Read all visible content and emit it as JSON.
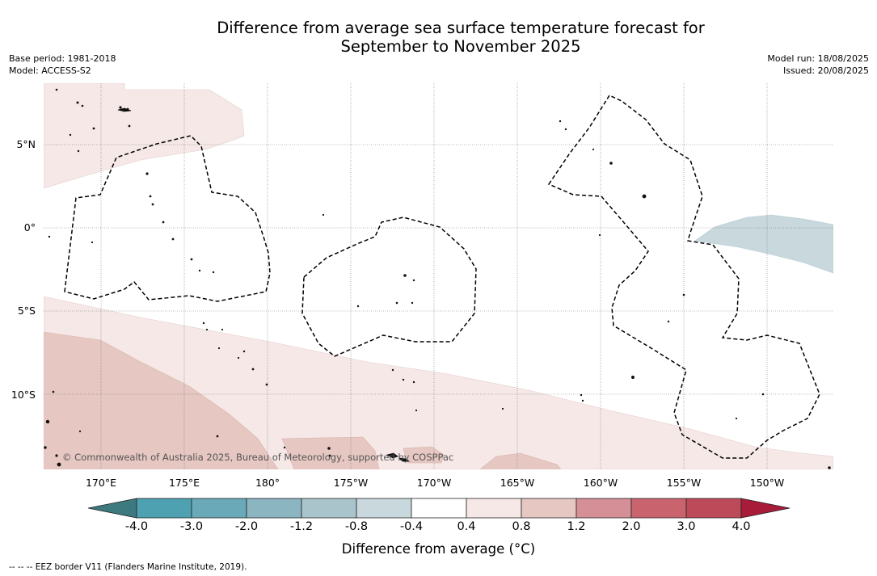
{
  "title": {
    "line1": "Difference from average sea surface temperature forecast for",
    "line2": "September to November 2025"
  },
  "meta": {
    "base_period": "Base period: 1981-2018",
    "model": "Model: ACCESS-S2",
    "model_run": "Model run: 18/08/2025",
    "issued": "Issued: 20/08/2025"
  },
  "map": {
    "lat_labels": [
      "5°N",
      "0°",
      "5°S",
      "10°S"
    ],
    "lon_labels": [
      "170°E",
      "175°E",
      "180°",
      "175°W",
      "170°W",
      "165°W",
      "160°W",
      "155°W",
      "150°W"
    ],
    "copyright": "© Commonwealth of Australia 2025, Bureau of Meteorology, supported by COSPPac"
  },
  "colorbar": {
    "ticks": [
      "-4.0",
      "-3.0",
      "-2.0",
      "-1.2",
      "-0.8",
      "-0.4",
      "0.4",
      "0.8",
      "1.2",
      "2.0",
      "3.0",
      "4.0"
    ],
    "colors": {
      "under": "#3d7a80",
      "bins": [
        "#4da1b1",
        "#6aa9b8",
        "#8bb6c1",
        "#a9c5cb",
        "#c8d8dc",
        "#ffffff",
        "#f5e8e6",
        "#e6c7c2",
        "#d58f96",
        "#c9646f",
        "#bd4a58"
      ],
      "over": "#a81c3a"
    },
    "label": "Difference from average (°C)"
  },
  "footnote": "--  --  -- EEZ border V11 (Flanders Marine Institute, 2019)."
}
